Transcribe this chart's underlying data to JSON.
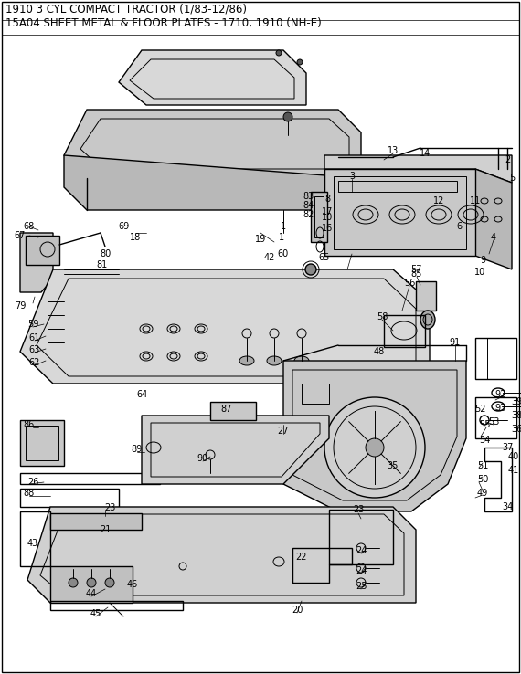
{
  "title_line1": "1910 3 CYL COMPACT TRACTOR (1/83-12/86)",
  "title_line2": "15A04 SHEET METAL & FLOOR PLATES - 1710, 1910 (NH-E)",
  "bg_color": "#ffffff",
  "line_color": "#000000",
  "text_color": "#000000",
  "title_fontsize": 8.5,
  "label_fontsize": 7.0,
  "fig_width": 5.7,
  "fig_height": 7.38,
  "dpi": 100
}
